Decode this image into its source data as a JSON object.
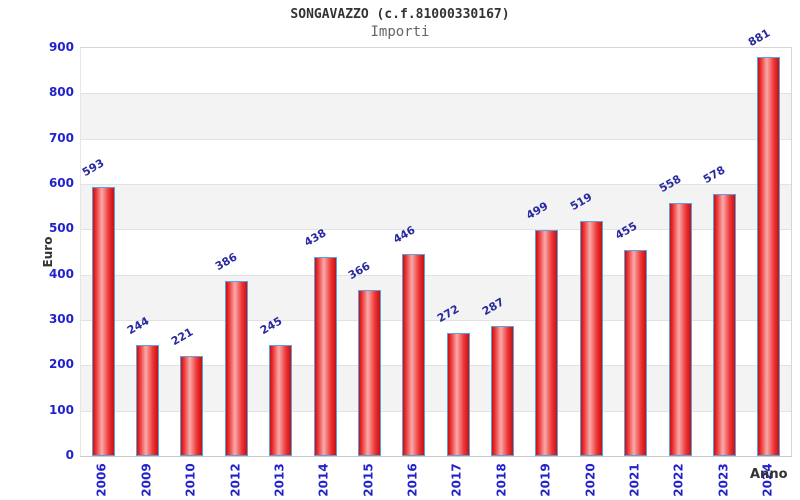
{
  "header": {
    "title": "SONGAVAZZO (c.f.81000330167)",
    "subtitle": "Importi"
  },
  "chart_data": {
    "type": "bar",
    "categories": [
      "2006",
      "2009",
      "2010",
      "2012",
      "2013",
      "2014",
      "2015",
      "2016",
      "2017",
      "2018",
      "2019",
      "2020",
      "2021",
      "2022",
      "2023",
      "2024"
    ],
    "values": [
      593,
      244,
      221,
      386,
      245,
      438,
      366,
      446,
      272,
      287,
      499,
      519,
      455,
      558,
      578,
      881
    ],
    "title": "SONGAVAZZO (c.f.81000330167)",
    "subtitle": "Importi",
    "xlabel": "Anno",
    "ylabel": "Euro",
    "ylim": [
      0,
      900
    ],
    "ytick_interval": 100,
    "grid": "alternating-horizontal-bands",
    "legend": "none",
    "colors": {
      "bar_fill_dark": "#c41212",
      "bar_fill_mid": "#ee3333",
      "bar_fill_highlight": "#f8aaaa",
      "bar_border": "#5ba3e0",
      "tick_label": "#2222cc",
      "value_label": "#2a2aa0",
      "axis_title": "#333333",
      "band_gray": "#f3f3f3",
      "gridline": "#e2e2e2"
    }
  }
}
